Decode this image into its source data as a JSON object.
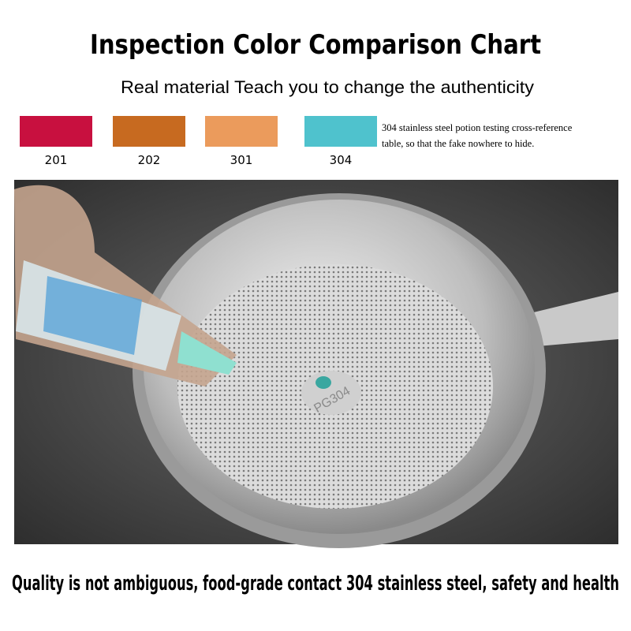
{
  "header": {
    "title": "Inspection Color Comparison Chart",
    "subtitle": "Real material Teach you to change the authenticity"
  },
  "swatches": [
    {
      "label": "201",
      "color": "#c8103f"
    },
    {
      "label": "202",
      "color": "#c76a20"
    },
    {
      "label": "301",
      "color": "#eb9b5c"
    },
    {
      "label": "304",
      "color": "#4fc2cd"
    }
  ],
  "note": {
    "lines": [
      "304 stainless steel potion testing cross-reference",
      "table, so that the fake nowhere to hide."
    ]
  },
  "photo": {
    "stamp": "PG304"
  },
  "caption": "Quality is not ambiguous, food-grade contact 304 stainless steel, safety and health"
}
